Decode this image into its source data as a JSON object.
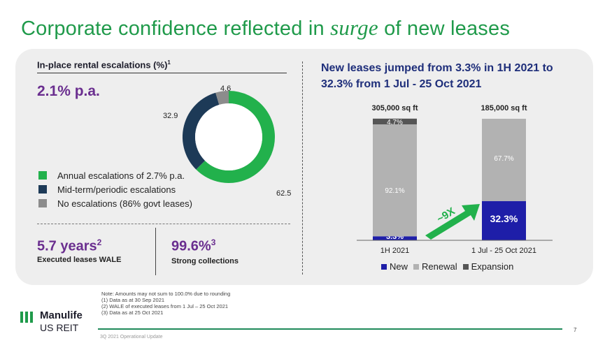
{
  "slide": {
    "title_before": "Corporate confidence reflected in",
    "title_emphasis": "surge",
    "title_after": "of new leases",
    "page_number": "7",
    "footer": "3Q 2021 Operational Update"
  },
  "colors": {
    "green": "#22b14c",
    "navy": "#1d3a57",
    "gray": "#8c8c8c",
    "purple": "#6a2e8f",
    "bar_new": "#1e1ea8",
    "bar_renewal": "#b2b2b2",
    "bar_expansion": "#555555"
  },
  "left": {
    "heading": "In-place rental escalations (%)",
    "heading_sup": "1",
    "headline": "2.1% p.a.",
    "wale_value": "5.7 years",
    "wale_sup": "2",
    "wale_label": "Executed leases WALE",
    "collect_value": "99.6%",
    "collect_sup": "3",
    "collect_label": "Strong collections"
  },
  "right": {
    "heading_line1": "New leases jumped from 3.3% in 1H 2021 to",
    "heading_line2": "32.3% from 1 Jul - 25 Oct 2021",
    "arrow_label": "~9X"
  },
  "chart_data": [
    {
      "type": "pie",
      "title": "In-place rental escalations (%)",
      "donut": true,
      "labels": [
        "Annual escalations of 2.7% p.a.",
        "Mid-term/periodic escalations",
        "No escalations (86% govt leases)"
      ],
      "values": [
        62.5,
        32.9,
        4.6
      ],
      "value_labels": [
        "62.5",
        "32.9",
        "4.6"
      ],
      "colors": [
        "#22b14c",
        "#1d3a57",
        "#8c8c8c"
      ]
    },
    {
      "type": "bar",
      "stacked": true,
      "title": "New leases jumped from 3.3% in 1H 2021 to 32.3% from 1 Jul - 25 Oct 2021",
      "categories": [
        "1H 2021",
        "1 Jul - 25 Oct 2021"
      ],
      "totals": [
        "305,000 sq ft",
        "185,000 sq ft"
      ],
      "ylim": [
        0,
        100
      ],
      "series": [
        {
          "name": "New",
          "values": [
            3.3,
            32.3
          ],
          "labels": [
            "3.3%",
            "32.3%"
          ],
          "color": "#1e1ea8"
        },
        {
          "name": "Renewal",
          "values": [
            92.1,
            67.7
          ],
          "labels": [
            "92.1%",
            "67.7%"
          ],
          "color": "#b2b2b2"
        },
        {
          "name": "Expansion",
          "values": [
            4.7,
            0
          ],
          "labels": [
            "4.7%",
            ""
          ],
          "color": "#555555"
        }
      ],
      "legend": [
        "New",
        "Renewal",
        "Expansion"
      ]
    }
  ],
  "notes": [
    "Note: Amounts may not sum to 100.0% due to rounding",
    "(1)  Data as at 30 Sep 2021",
    "(2)  WALE of executed leases from 1 Jul – 25 Oct 2021",
    "(3)  Data as at 25 Oct 2021"
  ],
  "logo": {
    "name": "Manulife",
    "sub": "US REIT"
  }
}
